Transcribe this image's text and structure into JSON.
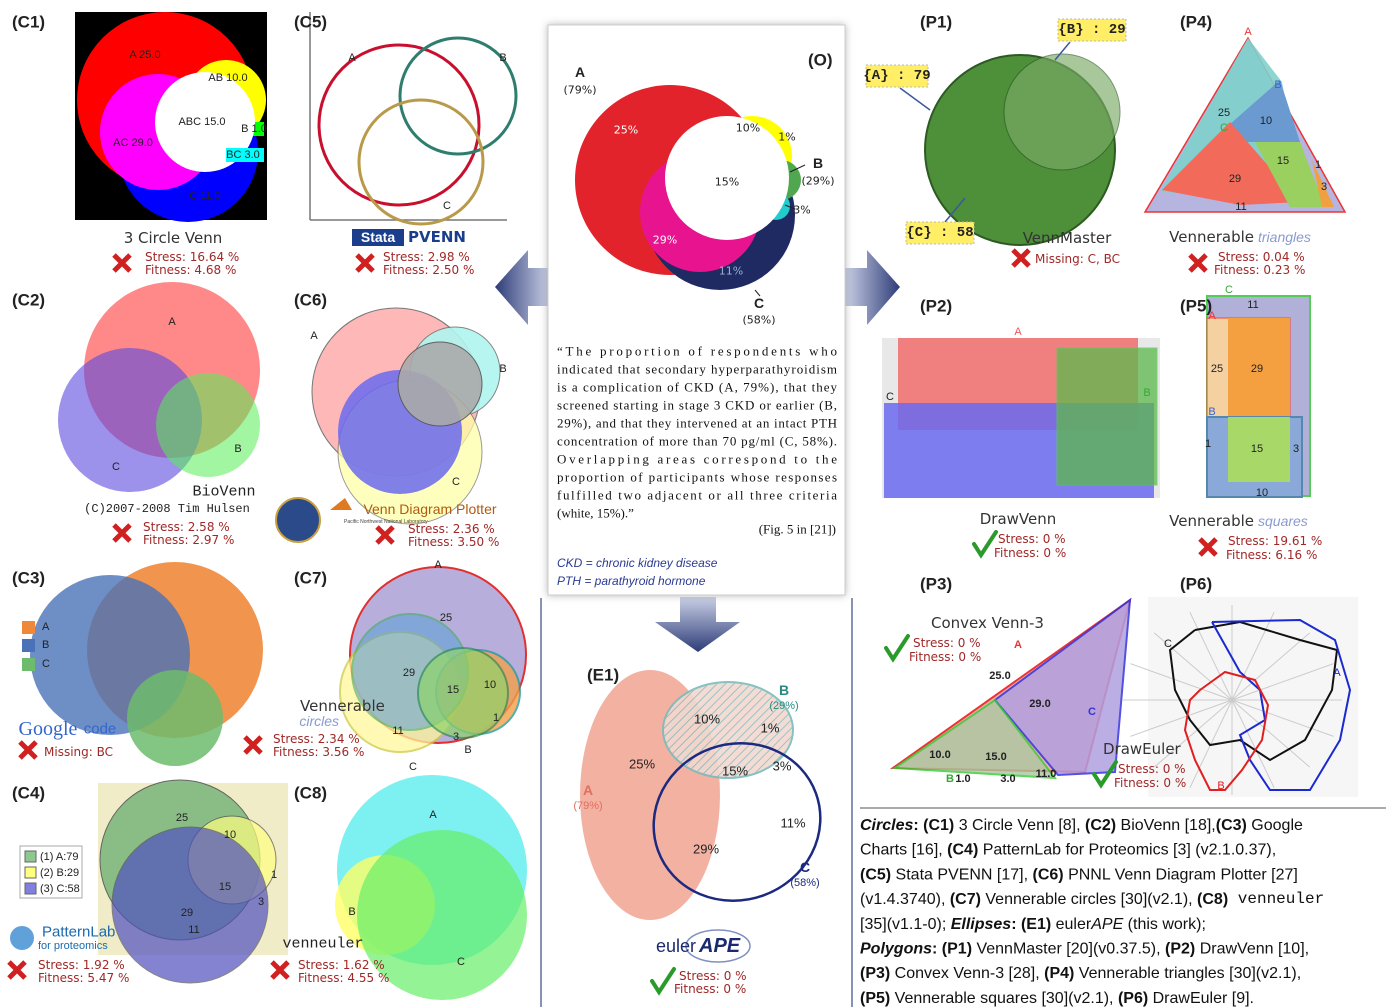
{
  "panels": {
    "C1": {
      "label": "(C1)",
      "name": "3 Circle Venn",
      "stress": "Stress: 16.64 %",
      "fitness": "Fitness: 4.68 %",
      "regions": [
        "A 25.0",
        "AB 10.0",
        "ABC 15.0",
        "B 1.0",
        "AC 29.0",
        "BC 3.0",
        "C 11.0"
      ]
    },
    "C5": {
      "label": "(C5)",
      "logo": "Stata",
      "name": "PVENN",
      "stress": "Stress: 2.98 %",
      "fitness": "Fitness: 2.50 %",
      "regions": [
        "A",
        "B",
        "C"
      ]
    },
    "C2": {
      "label": "(C2)",
      "name": "BioVenn",
      "credit": "(C)2007-2008 Tim Hulsen",
      "stress": "Stress: 2.58 %",
      "fitness": "Fitness: 2.97 %",
      "regions": [
        "A",
        "C",
        "B"
      ]
    },
    "C6": {
      "label": "(C6)",
      "name": "Venn Diagram Plotter",
      "org": "Pacific Northwest National Laboratory",
      "stress": "Stress: 2.36 %",
      "fitness": "Fitness: 3.50 %",
      "regions": [
        "A",
        "B",
        "C"
      ]
    },
    "C3": {
      "label": "(C3)",
      "logo": "Google",
      "name": "code",
      "legend": [
        "A",
        "B",
        "C"
      ],
      "missing": "Missing: BC"
    },
    "C7": {
      "label": "(C7)",
      "name": "Vennerable",
      "variant": "circles",
      "stress": "Stress: 2.34 %",
      "fitness": "Fitness: 3.56 %",
      "regions": [
        "A",
        "25",
        "29",
        "15",
        "10",
        "1",
        "11",
        "3",
        "C",
        "B"
      ]
    },
    "C4": {
      "label": "(C4)",
      "legend": [
        "(1) A:79",
        "(2) B:29",
        "(3) C:58"
      ],
      "name": "PatternLab",
      "variant": "for proteomics",
      "stress": "Stress: 1.92 %",
      "fitness": "Fitness: 5.47 %",
      "regions": [
        "25",
        "10",
        "15",
        "1",
        "29",
        "11",
        "3"
      ]
    },
    "C8": {
      "label": "(C8)",
      "name": "venneuler",
      "stress": "Stress: 1.62 %",
      "fitness": "Fitness: 4.55 %",
      "regions": [
        "A",
        "B",
        "C"
      ]
    },
    "O": {
      "label": "(O)",
      "regions": [
        "A",
        "(79%)",
        "25%",
        "10%",
        "1%",
        "B",
        "(29%)",
        "15%",
        "3%",
        "29%",
        "11%",
        "C",
        "(58%)"
      ],
      "quote": [
        "“The proportion of respondents who",
        "indicated that secondary hyperparathyroidism",
        "is a complication of CKD (A, 79%), that they",
        "screened starting in stage 3 CKD or earlier (B,",
        "29%), and that they intervened at an intact PTH",
        "concentration of more than 70 pg/ml (C, 58%).",
        "Overlapping areas correspond to the",
        "proportion of participants whose responses",
        "fulfilled two adjacent or all three criteria",
        "(white, 15%).”"
      ],
      "source": "(Fig. 5 in [21])",
      "notes": [
        "CKD = chronic kidney disease",
        "PTH = parathyroid hormone"
      ]
    },
    "E1": {
      "label": "(E1)",
      "regions": [
        "B",
        "(29%)",
        "10%",
        "1%",
        "25%",
        "15%",
        "3%",
        "A",
        "(79%)",
        "11%",
        "29%",
        "C",
        "(58%)"
      ],
      "logo": "euler",
      "name": "APE",
      "stress": "Stress: 0 %",
      "fitness": "Fitness: 0 %"
    },
    "P1": {
      "label": "(P1)",
      "regions": [
        "{B} : 29",
        "{A} : 79",
        "{C} : 58"
      ],
      "name": "VennMaster",
      "missing": "Missing: C, BC"
    },
    "P4": {
      "label": "(P4)",
      "name": "Vennerable",
      "variant": "triangles",
      "stress": "Stress: 0.04 %",
      "fitness": "Fitness: 0.23 %",
      "regions": [
        "A",
        "B",
        "25",
        "10",
        "C",
        "15",
        "1",
        "29",
        "3",
        "11"
      ]
    },
    "P2": {
      "label": "(P2)",
      "name": "DrawVenn",
      "stress": "Stress: 0 %",
      "fitness": "Fitness: 0 %",
      "regions": [
        "A",
        "C",
        "B"
      ]
    },
    "P5": {
      "label": "(P5)",
      "name": "Vennerable",
      "variant": "squares",
      "stress": "Stress: 19.61 %",
      "fitness": "Fitness: 6.16 %",
      "regions": [
        "C",
        "11",
        "A",
        "25",
        "29",
        "B",
        "1",
        "15",
        "3",
        "10"
      ]
    },
    "P3": {
      "label": "(P3)",
      "name": "Convex Venn-3",
      "stress": "Stress: 0 %",
      "fitness": "Fitness: 0 %",
      "regions": [
        "A",
        "25.0",
        "29.0",
        "C",
        "10.0",
        "15.0",
        "B",
        "1.0",
        "3.0",
        "11.0"
      ]
    },
    "P6": {
      "label": "(P6)",
      "name": "DrawEuler",
      "stress": "Stress: 0 %",
      "fitness": "Fitness: 0 %",
      "regions": [
        "C",
        "A",
        "B"
      ]
    }
  },
  "caption": [
    [
      "Circles",
      ": (C1)",
      " 3 Circle Venn [8], ",
      "(C2)",
      " BioVenn [18],",
      "(C3)",
      " Google"
    ],
    [
      "Charts [16], ",
      "(C4)",
      " PatternLab for Proteomics [3] (v2.1.0.37),"
    ],
    [
      "(C5)",
      " Stata PVENN [17], ",
      "(C6)",
      " PNNL Venn Diagram Plotter [27]"
    ],
    [
      "(v1.4.3740), ",
      "(C7)",
      " Vennerable circles [30](v2.1), ",
      "(C8)",
      " venneuler"
    ],
    [
      "[35](v1.1-0); ",
      "Ellipses",
      ": (E1)",
      " euler",
      "APE",
      " (this work);"
    ],
    [
      "Polygons",
      ": (P1)",
      " VennMaster [20](v0.37.5), ",
      "(P2)",
      " DrawVenn [10],"
    ],
    [
      "(P3)",
      " Convex Venn-3 [28], ",
      "(P4)",
      " Vennerable triangles [30](v2.1),"
    ],
    [
      "(P5)",
      " Vennerable squares [30](v2.1), ",
      "(P6)",
      " DrawEuler [9]."
    ]
  ]
}
